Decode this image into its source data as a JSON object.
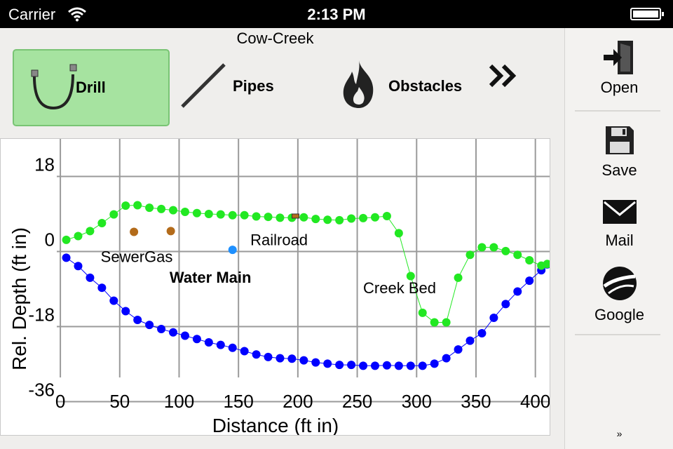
{
  "status_bar": {
    "carrier": "Carrier",
    "time": "2:13 PM"
  },
  "title": "Cow-Creek",
  "toolbar": {
    "tools": [
      {
        "label": "Drill",
        "icon": "drill-curve-icon",
        "selected": true
      },
      {
        "label": "Pipes",
        "icon": "pipe-line-icon",
        "selected": false
      },
      {
        "label": "Obstacles",
        "icon": "flame-icon",
        "selected": false
      }
    ],
    "more_icon": "double-chevron-right-icon"
  },
  "side_panel": {
    "items": [
      {
        "label": "Open",
        "icon": "open-door-icon"
      },
      {
        "label": "Save",
        "icon": "floppy-disk-icon"
      },
      {
        "label": "Mail",
        "icon": "envelope-icon"
      },
      {
        "label": "Google",
        "icon": "google-earth-icon"
      }
    ],
    "footer_icon": "double-chevron-down-icon"
  },
  "chart_data": {
    "type": "scatter",
    "xlabel": "Distance (ft in)",
    "ylabel": "Rel. Depth (ft in)",
    "xlim": [
      -3,
      412
    ],
    "ylim": [
      -44,
      27
    ],
    "x_ticks": [
      0,
      50,
      100,
      150,
      200,
      250,
      300,
      350,
      400
    ],
    "y_ticks": [
      18,
      0,
      -18,
      -36
    ],
    "grid": true,
    "series": [
      {
        "color": "#0000ff",
        "connected": true,
        "x": [
          5,
          15,
          25,
          35,
          45,
          55,
          65,
          75,
          85,
          95,
          105,
          115,
          125,
          135,
          145,
          155,
          165,
          175,
          185,
          195,
          205,
          215,
          225,
          235,
          245,
          255,
          265,
          275,
          285,
          295,
          305,
          315,
          325,
          335,
          345,
          355,
          365,
          375,
          385,
          395,
          405,
          410
        ],
        "y": [
          -1.5,
          -3.5,
          -6.3,
          -8.7,
          -11.8,
          -14.3,
          -16.4,
          -17.6,
          -18.6,
          -19.4,
          -20.2,
          -21.0,
          -21.8,
          -22.4,
          -23.1,
          -23.9,
          -24.7,
          -25.3,
          -25.6,
          -25.7,
          -26.1,
          -26.6,
          -26.9,
          -27.2,
          -27.2,
          -27.4,
          -27.4,
          -27.3,
          -27.4,
          -27.4,
          -27.4,
          -26.9,
          -25.6,
          -23.5,
          -21.4,
          -19.6,
          -15.9,
          -12.6,
          -9.6,
          -7.0,
          -4.5,
          -3.1
        ]
      },
      {
        "color": "#22e822",
        "connected": true,
        "x": [
          5,
          15,
          25,
          35,
          45,
          55,
          65,
          75,
          85,
          95,
          105,
          115,
          125,
          135,
          145,
          155,
          165,
          175,
          185,
          195,
          205,
          215,
          225,
          235,
          245,
          255,
          265,
          275,
          285,
          295,
          305,
          315,
          325,
          335,
          345,
          355,
          365,
          375,
          385,
          395,
          405,
          410
        ],
        "y": [
          2.8,
          3.7,
          4.9,
          6.8,
          8.9,
          11.0,
          11.1,
          10.5,
          10.2,
          9.9,
          9.5,
          9.2,
          9.0,
          8.9,
          8.7,
          8.7,
          8.4,
          8.3,
          8.1,
          8.1,
          8.2,
          7.8,
          7.6,
          7.5,
          7.9,
          8.0,
          8.2,
          8.5,
          4.4,
          -5.9,
          -14.7,
          -17.0,
          -17.0,
          -6.3,
          -0.8,
          1.0,
          1.0,
          0.1,
          -0.8,
          -2.1,
          -3.4,
          -3.0
        ]
      },
      {
        "name": "SewerGas",
        "color": "#b36b1a",
        "connected": false,
        "x": [
          62,
          93
        ],
        "y": [
          4.7,
          4.9
        ]
      },
      {
        "name": "Water Main",
        "color": "#1e90ff",
        "connected": false,
        "x": [
          145
        ],
        "y": [
          0.4
        ]
      }
    ],
    "annotations": [
      {
        "text": "SewerGas",
        "x": 34,
        "y": -2.5,
        "bold": false
      },
      {
        "text": "Water Main",
        "x": 92,
        "y": -7.5,
        "bold": true
      },
      {
        "text": "Railroad",
        "x": 160,
        "y": 1.5,
        "bold": false
      },
      {
        "text": "Creek Bed",
        "x": 255,
        "y": -10,
        "bold": false
      }
    ],
    "markers": [
      {
        "kind": "bar",
        "x": 198,
        "y": 8.5,
        "color": "#b36b1a"
      }
    ]
  }
}
